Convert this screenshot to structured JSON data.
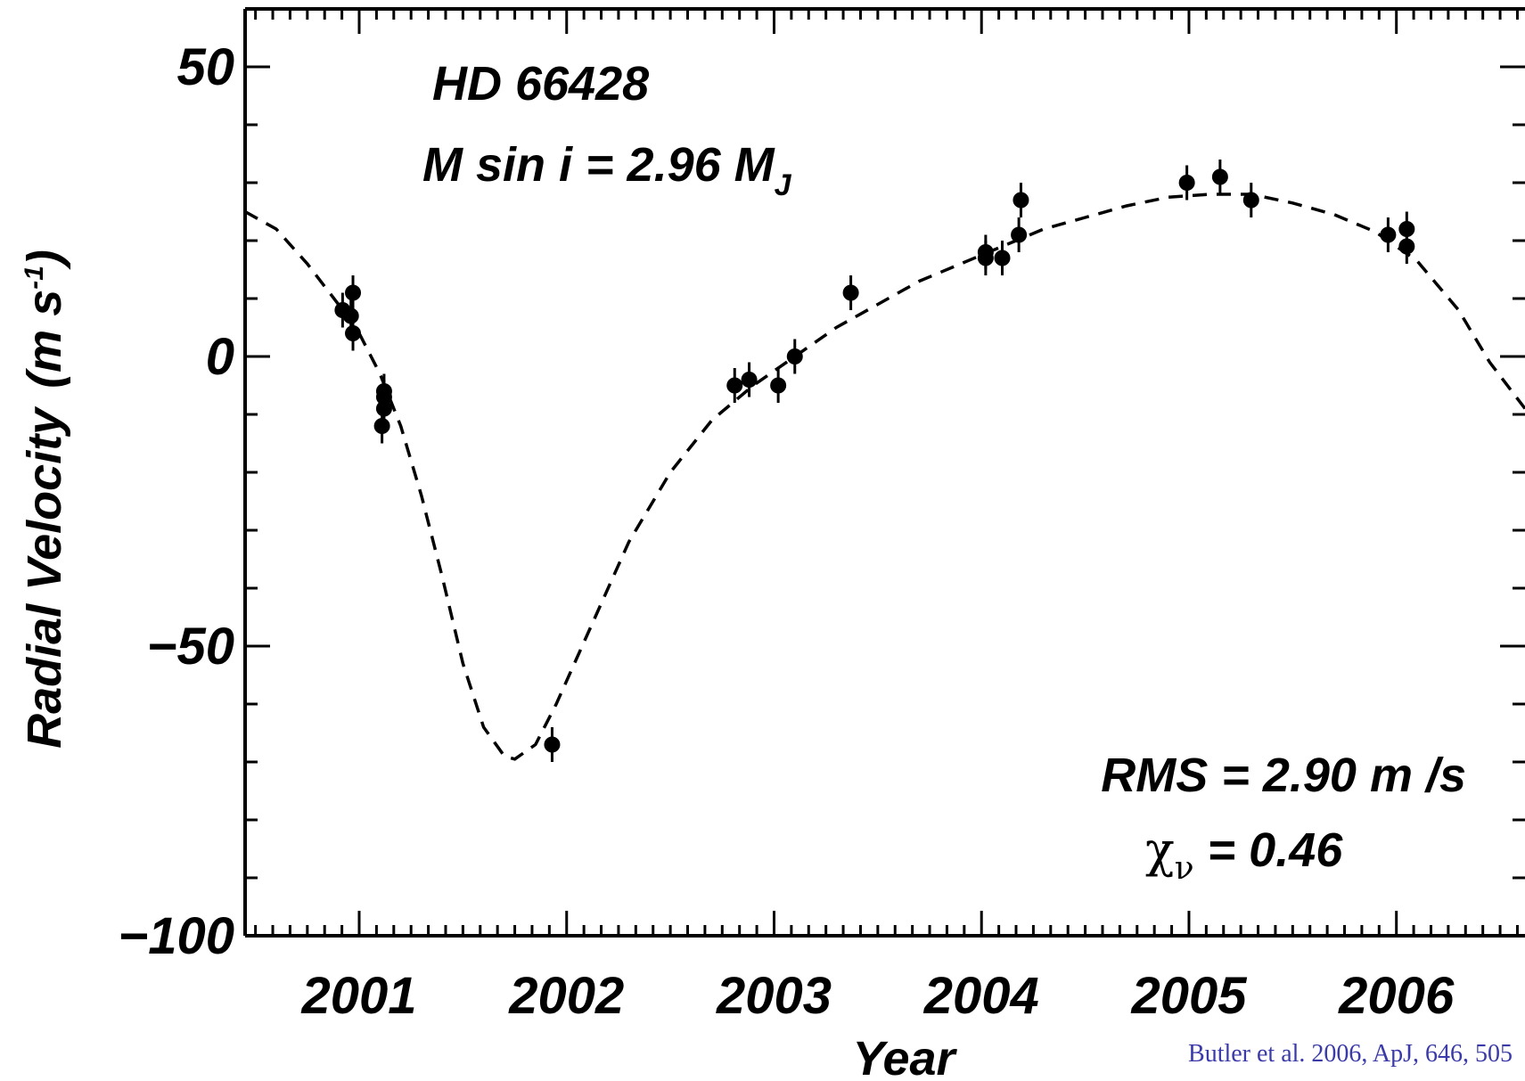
{
  "chart_data": {
    "type": "scatter",
    "xlabel": "Year",
    "ylabel": "Radial Velocity",
    "ylabel_unit": "(m s",
    "ylabel_unit_sup": "-1",
    "ylabel_unit_close": ")",
    "xlim": [
      2000.45,
      2006.62
    ],
    "ylim": [
      -100,
      60
    ],
    "x_ticks": [
      2001,
      2002,
      2003,
      2004,
      2005,
      2006
    ],
    "x_tick_labels": [
      "2001",
      "2002",
      "2003",
      "2004",
      "2005",
      "2006"
    ],
    "y_ticks": [
      50,
      0,
      -50,
      -100
    ],
    "y_tick_labels": [
      "50",
      "0",
      "−50",
      "−100"
    ],
    "annotations": {
      "star": "HD 66428",
      "msini_prefix": "M sin i = 2.96 M",
      "msini_sub": "J",
      "rms": "RMS = 2.90 m /s",
      "chi_symbol": "χ",
      "chi_sub": "ν",
      "chi_value": " = 0.46"
    },
    "series": [
      {
        "marker": "filled-circle",
        "x": [
          2000.92,
          2000.96,
          2000.97,
          2000.97,
          2001.12,
          2001.12,
          2001.12,
          2001.11,
          2001.93,
          2002.81,
          2002.88,
          2003.02,
          2003.1,
          2003.37,
          2004.02,
          2004.02,
          2004.1,
          2004.18,
          2004.19,
          2004.99,
          2005.15,
          2005.3,
          2005.96,
          2006.05,
          2006.05
        ],
        "y": [
          8,
          7,
          11,
          4,
          -6,
          -7,
          -9,
          -12,
          -67,
          -5,
          -4,
          -5,
          0,
          11,
          18,
          17,
          17,
          21,
          27,
          30,
          31,
          27,
          21,
          22,
          19
        ],
        "err": [
          3,
          3,
          3,
          3,
          3,
          3,
          3,
          3,
          3,
          3,
          3,
          3,
          3,
          3,
          3,
          3,
          3,
          3,
          3,
          3,
          3,
          3,
          3,
          3,
          3
        ]
      },
      {
        "line_style": "dashed",
        "x": [
          2000.45,
          2000.6,
          2000.75,
          2000.9,
          2001.0,
          2001.1,
          2001.2,
          2001.3,
          2001.4,
          2001.5,
          2001.6,
          2001.7,
          2001.75,
          2001.85,
          2001.95,
          2002.1,
          2002.3,
          2002.5,
          2002.7,
          2002.9,
          2003.1,
          2003.3,
          2003.5,
          2003.7,
          2003.9,
          2004.1,
          2004.3,
          2004.5,
          2004.7,
          2004.9,
          2005.1,
          2005.3,
          2005.5,
          2005.7,
          2005.9,
          2006.1,
          2006.3,
          2006.45,
          2006.62
        ],
        "y": [
          25,
          22,
          16,
          9,
          4,
          -3,
          -12,
          -24,
          -38,
          -53,
          -64,
          -69,
          -69.5,
          -67,
          -60,
          -48,
          -32,
          -20,
          -11,
          -5,
          0,
          5,
          9,
          13,
          16,
          19,
          22,
          24,
          26,
          27.5,
          28,
          28,
          26.5,
          24.5,
          21.5,
          16.5,
          8,
          -1,
          -9
        ]
      }
    ]
  },
  "citation": "Butler et al. 2006, ApJ, 646, 505"
}
